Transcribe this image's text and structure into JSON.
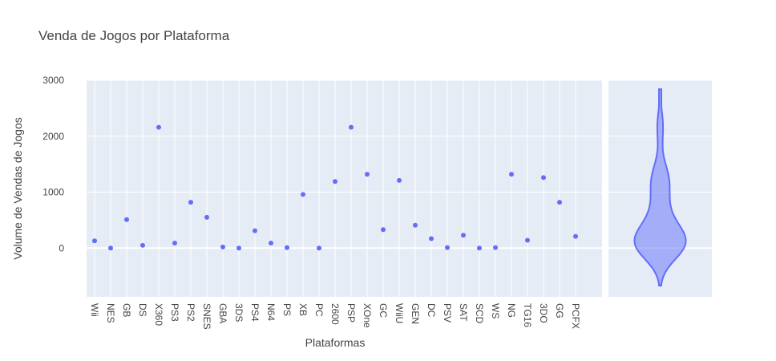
{
  "chart_data": {
    "type": "scatter",
    "title": "Venda de Jogos por Plataforma",
    "xlabel": "Plataformas",
    "ylabel": "Volume de Vendas de Jogos",
    "ylim": [
      -870,
      3000
    ],
    "yticks": [
      0,
      1000,
      2000,
      3000
    ],
    "grid": true,
    "categories": [
      "Wii",
      "NES",
      "GB",
      "DS",
      "X360",
      "PS3",
      "PS2",
      "SNES",
      "GBA",
      "3DS",
      "PS4",
      "N64",
      "PS",
      "XB",
      "PC",
      "2600",
      "PSP",
      "XOne",
      "GC",
      "WiiU",
      "GEN",
      "DC",
      "PSV",
      "SAT",
      "SCD",
      "WS",
      "NG",
      "TG16",
      "3DO",
      "GG",
      "PCFX"
    ],
    "values": [
      130,
      0,
      510,
      50,
      2160,
      90,
      820,
      550,
      20,
      0,
      310,
      90,
      10,
      960,
      0,
      1190,
      2160,
      1320,
      330,
      1210,
      410,
      170,
      10,
      230,
      0,
      10,
      1320,
      140,
      1260,
      820,
      210
    ],
    "marker_color": "#636efa",
    "violin": {
      "range": [
        -670,
        2840
      ],
      "fill_color": "#636efa",
      "line_color": "#636efa"
    }
  }
}
